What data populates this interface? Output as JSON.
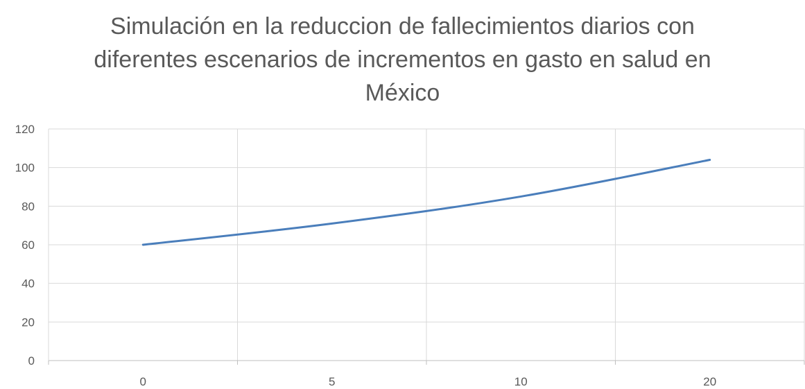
{
  "chart_data": {
    "type": "line",
    "title_lines": [
      "Simulación en la reduccion de fallecimientos diarios con",
      "diferentes escenarios de incrementos en gasto en salud en",
      "México"
    ],
    "xlabel": "",
    "ylabel": "",
    "categories": [
      "0",
      "5",
      "10",
      "20"
    ],
    "series": [
      {
        "values": [
          60,
          71,
          85,
          104
        ]
      }
    ],
    "ylim": [
      0,
      120
    ],
    "yticks": [
      "0",
      "20",
      "40",
      "60",
      "80",
      "100",
      "120"
    ],
    "grid": true,
    "legend": "none",
    "colors": {
      "line": "#4a7ebb",
      "grid": "#d9d9d9",
      "text": "#595959"
    }
  }
}
